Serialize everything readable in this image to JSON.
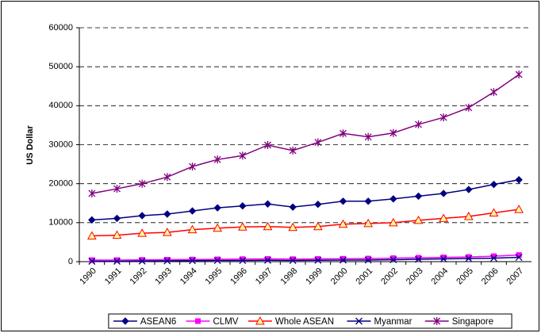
{
  "chart_data": {
    "type": "line",
    "y_label": "US Dollar",
    "categories": [
      "1990",
      "1991",
      "1992",
      "1993",
      "1994",
      "1995",
      "1996",
      "1997",
      "1998",
      "1999",
      "2000",
      "2001",
      "2002",
      "2003",
      "2004",
      "2005",
      "2006",
      "2007"
    ],
    "ylim": [
      0,
      60000
    ],
    "yticks": [
      0,
      10000,
      20000,
      30000,
      40000,
      50000,
      60000
    ],
    "grid": true,
    "legend": "bottom",
    "series": [
      {
        "name": "ASEAN6",
        "color": "#000080",
        "marker": "diamond",
        "values": [
          10700,
          11100,
          11800,
          12200,
          13000,
          13800,
          14300,
          14800,
          14000,
          14700,
          15500,
          15500,
          16100,
          16800,
          17500,
          18500,
          19800,
          21000
        ]
      },
      {
        "name": "CLMV",
        "color": "#FF00FF",
        "marker": "square",
        "values": [
          400,
          400,
          450,
          500,
          550,
          600,
          650,
          700,
          650,
          700,
          750,
          800,
          900,
          1000,
          1100,
          1200,
          1400,
          1700
        ]
      },
      {
        "name": "Whole ASEAN",
        "color": "#FF0000",
        "marker": "triangle",
        "values": [
          6600,
          6800,
          7300,
          7500,
          8200,
          8600,
          8900,
          9000,
          8800,
          9000,
          9600,
          9800,
          10000,
          10600,
          11100,
          11600,
          12500,
          13400
        ]
      },
      {
        "name": "Myanmar",
        "color": "#000080",
        "marker": "x",
        "values": [
          100,
          100,
          150,
          200,
          250,
          300,
          300,
          350,
          300,
          350,
          400,
          400,
          500,
          600,
          700,
          800,
          900,
          1100
        ]
      },
      {
        "name": "Singapore",
        "color": "#800080",
        "marker": "star",
        "values": [
          17500,
          18700,
          20000,
          21700,
          24400,
          26200,
          27200,
          29900,
          28500,
          30600,
          32900,
          32000,
          33000,
          35200,
          37000,
          39500,
          43500,
          48000
        ]
      }
    ]
  }
}
